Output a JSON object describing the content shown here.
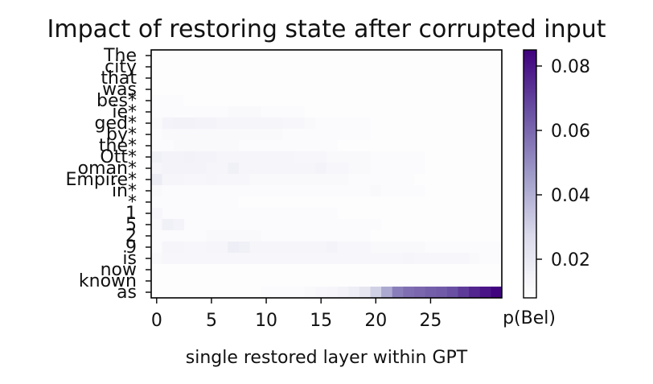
{
  "chart_data": {
    "type": "heatmap",
    "title": "Impact of restoring state after corrupted input",
    "xlabel": "single restored layer within GPT",
    "ylabel": "",
    "x_ticks": [
      0,
      5,
      10,
      15,
      20,
      25
    ],
    "x_range": [
      0,
      31
    ],
    "rows": [
      "The",
      "city",
      "that",
      "was",
      "bes*",
      "ie*",
      "ged*",
      "by*",
      "the*",
      "Ott*",
      "oman*",
      "Empire*",
      "in*",
      "*",
      "1",
      "5",
      "2",
      "9",
      "is",
      "now",
      "known",
      "as"
    ],
    "colorbar": {
      "label": "p(Bel)",
      "ticks": [
        0.02,
        0.04,
        0.06,
        0.08
      ],
      "range": [
        0.008,
        0.085
      ],
      "low_color": "#ffffff",
      "high_color": "#3f007d"
    },
    "grid": false,
    "colormap": "Purples",
    "values": [
      [
        0.009,
        0.009,
        0.009,
        0.009,
        0.009,
        0.009,
        0.009,
        0.009,
        0.009,
        0.009,
        0.009,
        0.009,
        0.009,
        0.009,
        0.009,
        0.009,
        0.009,
        0.009,
        0.009,
        0.009,
        0.009,
        0.009,
        0.009,
        0.009,
        0.009,
        0.009,
        0.009,
        0.009,
        0.009,
        0.009,
        0.009,
        0.009
      ],
      [
        0.009,
        0.009,
        0.009,
        0.009,
        0.009,
        0.009,
        0.009,
        0.009,
        0.009,
        0.009,
        0.009,
        0.009,
        0.009,
        0.009,
        0.009,
        0.009,
        0.009,
        0.009,
        0.009,
        0.009,
        0.009,
        0.009,
        0.009,
        0.009,
        0.009,
        0.009,
        0.009,
        0.009,
        0.009,
        0.009,
        0.009,
        0.009
      ],
      [
        0.009,
        0.009,
        0.009,
        0.009,
        0.009,
        0.009,
        0.009,
        0.009,
        0.009,
        0.009,
        0.009,
        0.009,
        0.009,
        0.009,
        0.009,
        0.009,
        0.009,
        0.009,
        0.009,
        0.009,
        0.009,
        0.009,
        0.009,
        0.009,
        0.009,
        0.009,
        0.009,
        0.009,
        0.009,
        0.009,
        0.009,
        0.009
      ],
      [
        0.009,
        0.009,
        0.009,
        0.009,
        0.009,
        0.009,
        0.009,
        0.009,
        0.009,
        0.009,
        0.009,
        0.009,
        0.009,
        0.009,
        0.009,
        0.009,
        0.009,
        0.009,
        0.009,
        0.009,
        0.009,
        0.009,
        0.009,
        0.009,
        0.009,
        0.009,
        0.009,
        0.009,
        0.009,
        0.009,
        0.009,
        0.009
      ],
      [
        0.01,
        0.01,
        0.01,
        0.009,
        0.009,
        0.009,
        0.009,
        0.009,
        0.009,
        0.009,
        0.009,
        0.009,
        0.009,
        0.009,
        0.009,
        0.009,
        0.009,
        0.009,
        0.009,
        0.009,
        0.009,
        0.009,
        0.009,
        0.009,
        0.009,
        0.009,
        0.009,
        0.009,
        0.009,
        0.009,
        0.009,
        0.009
      ],
      [
        0.01,
        0.01,
        0.01,
        0.01,
        0.01,
        0.01,
        0.01,
        0.011,
        0.011,
        0.011,
        0.01,
        0.01,
        0.01,
        0.01,
        0.009,
        0.009,
        0.009,
        0.009,
        0.009,
        0.009,
        0.009,
        0.009,
        0.009,
        0.009,
        0.009,
        0.009,
        0.009,
        0.009,
        0.009,
        0.009,
        0.009,
        0.009
      ],
      [
        0.011,
        0.014,
        0.015,
        0.015,
        0.014,
        0.014,
        0.013,
        0.013,
        0.013,
        0.013,
        0.013,
        0.013,
        0.012,
        0.012,
        0.011,
        0.01,
        0.01,
        0.01,
        0.01,
        0.01,
        0.009,
        0.009,
        0.009,
        0.009,
        0.009,
        0.009,
        0.009,
        0.009,
        0.009,
        0.009,
        0.009,
        0.009
      ],
      [
        0.01,
        0.011,
        0.011,
        0.011,
        0.011,
        0.011,
        0.011,
        0.011,
        0.011,
        0.011,
        0.011,
        0.011,
        0.01,
        0.01,
        0.01,
        0.01,
        0.01,
        0.01,
        0.01,
        0.01,
        0.009,
        0.009,
        0.009,
        0.009,
        0.009,
        0.009,
        0.009,
        0.009,
        0.009,
        0.009,
        0.009,
        0.009
      ],
      [
        0.01,
        0.01,
        0.011,
        0.011,
        0.011,
        0.011,
        0.011,
        0.011,
        0.01,
        0.01,
        0.01,
        0.01,
        0.01,
        0.01,
        0.01,
        0.01,
        0.01,
        0.009,
        0.009,
        0.009,
        0.009,
        0.009,
        0.009,
        0.009,
        0.009,
        0.009,
        0.009,
        0.009,
        0.009,
        0.009,
        0.009,
        0.009
      ],
      [
        0.016,
        0.014,
        0.014,
        0.015,
        0.014,
        0.014,
        0.013,
        0.013,
        0.013,
        0.013,
        0.013,
        0.013,
        0.013,
        0.012,
        0.012,
        0.012,
        0.011,
        0.011,
        0.011,
        0.011,
        0.01,
        0.01,
        0.01,
        0.01,
        0.01,
        0.009,
        0.009,
        0.009,
        0.009,
        0.009,
        0.009,
        0.009
      ],
      [
        0.013,
        0.014,
        0.014,
        0.014,
        0.014,
        0.013,
        0.013,
        0.016,
        0.013,
        0.013,
        0.013,
        0.013,
        0.013,
        0.013,
        0.013,
        0.014,
        0.012,
        0.012,
        0.011,
        0.011,
        0.01,
        0.01,
        0.01,
        0.01,
        0.01,
        0.009,
        0.009,
        0.009,
        0.009,
        0.009,
        0.009,
        0.009
      ],
      [
        0.018,
        0.013,
        0.013,
        0.012,
        0.012,
        0.013,
        0.012,
        0.012,
        0.012,
        0.011,
        0.011,
        0.011,
        0.011,
        0.011,
        0.011,
        0.011,
        0.011,
        0.011,
        0.01,
        0.01,
        0.01,
        0.01,
        0.01,
        0.01,
        0.009,
        0.009,
        0.009,
        0.009,
        0.009,
        0.009,
        0.009,
        0.009
      ],
      [
        0.011,
        0.01,
        0.01,
        0.01,
        0.01,
        0.01,
        0.01,
        0.01,
        0.01,
        0.01,
        0.01,
        0.01,
        0.01,
        0.01,
        0.01,
        0.01,
        0.01,
        0.01,
        0.01,
        0.01,
        0.011,
        0.01,
        0.01,
        0.01,
        0.01,
        0.009,
        0.009,
        0.009,
        0.009,
        0.009,
        0.009,
        0.009
      ],
      [
        0.01,
        0.01,
        0.01,
        0.01,
        0.01,
        0.01,
        0.01,
        0.01,
        0.009,
        0.009,
        0.009,
        0.009,
        0.009,
        0.009,
        0.009,
        0.009,
        0.009,
        0.009,
        0.009,
        0.009,
        0.009,
        0.009,
        0.009,
        0.009,
        0.009,
        0.009,
        0.009,
        0.009,
        0.009,
        0.009,
        0.009,
        0.009
      ],
      [
        0.012,
        0.01,
        0.01,
        0.01,
        0.01,
        0.01,
        0.01,
        0.01,
        0.01,
        0.01,
        0.01,
        0.01,
        0.01,
        0.01,
        0.01,
        0.01,
        0.01,
        0.009,
        0.009,
        0.009,
        0.009,
        0.009,
        0.009,
        0.009,
        0.009,
        0.009,
        0.009,
        0.009,
        0.009,
        0.009,
        0.009,
        0.009
      ],
      [
        0.011,
        0.016,
        0.014,
        0.01,
        0.01,
        0.01,
        0.01,
        0.01,
        0.01,
        0.01,
        0.01,
        0.01,
        0.01,
        0.01,
        0.01,
        0.01,
        0.01,
        0.01,
        0.01,
        0.01,
        0.01,
        0.009,
        0.009,
        0.009,
        0.009,
        0.009,
        0.009,
        0.009,
        0.009,
        0.009,
        0.009,
        0.009
      ],
      [
        0.01,
        0.01,
        0.01,
        0.01,
        0.01,
        0.011,
        0.011,
        0.011,
        0.011,
        0.011,
        0.01,
        0.01,
        0.01,
        0.01,
        0.01,
        0.01,
        0.01,
        0.01,
        0.01,
        0.01,
        0.009,
        0.009,
        0.009,
        0.009,
        0.009,
        0.009,
        0.009,
        0.009,
        0.009,
        0.009,
        0.009,
        0.009
      ],
      [
        0.01,
        0.013,
        0.013,
        0.012,
        0.012,
        0.013,
        0.013,
        0.017,
        0.016,
        0.013,
        0.013,
        0.013,
        0.013,
        0.013,
        0.013,
        0.013,
        0.014,
        0.012,
        0.012,
        0.012,
        0.011,
        0.011,
        0.011,
        0.011,
        0.011,
        0.01,
        0.01,
        0.01,
        0.01,
        0.01,
        0.01,
        0.01
      ],
      [
        0.011,
        0.012,
        0.012,
        0.012,
        0.012,
        0.012,
        0.012,
        0.012,
        0.012,
        0.012,
        0.012,
        0.012,
        0.012,
        0.012,
        0.012,
        0.012,
        0.012,
        0.012,
        0.012,
        0.012,
        0.012,
        0.012,
        0.012,
        0.013,
        0.012,
        0.012,
        0.012,
        0.012,
        0.012,
        0.011,
        0.01,
        0.01
      ],
      [
        0.009,
        0.009,
        0.009,
        0.009,
        0.009,
        0.009,
        0.009,
        0.009,
        0.009,
        0.009,
        0.009,
        0.009,
        0.009,
        0.009,
        0.009,
        0.009,
        0.009,
        0.009,
        0.009,
        0.009,
        0.009,
        0.009,
        0.009,
        0.009,
        0.009,
        0.009,
        0.009,
        0.009,
        0.009,
        0.009,
        0.009,
        0.009
      ],
      [
        0.009,
        0.009,
        0.009,
        0.009,
        0.009,
        0.009,
        0.009,
        0.009,
        0.009,
        0.009,
        0.009,
        0.009,
        0.009,
        0.009,
        0.009,
        0.009,
        0.009,
        0.009,
        0.009,
        0.009,
        0.009,
        0.009,
        0.009,
        0.009,
        0.009,
        0.009,
        0.009,
        0.009,
        0.009,
        0.009,
        0.009,
        0.009
      ],
      [
        0.009,
        0.009,
        0.009,
        0.009,
        0.009,
        0.009,
        0.009,
        0.009,
        0.009,
        0.009,
        0.01,
        0.01,
        0.01,
        0.01,
        0.011,
        0.012,
        0.013,
        0.015,
        0.017,
        0.021,
        0.03,
        0.042,
        0.054,
        0.058,
        0.06,
        0.062,
        0.063,
        0.066,
        0.071,
        0.076,
        0.08,
        0.084
      ]
    ]
  }
}
